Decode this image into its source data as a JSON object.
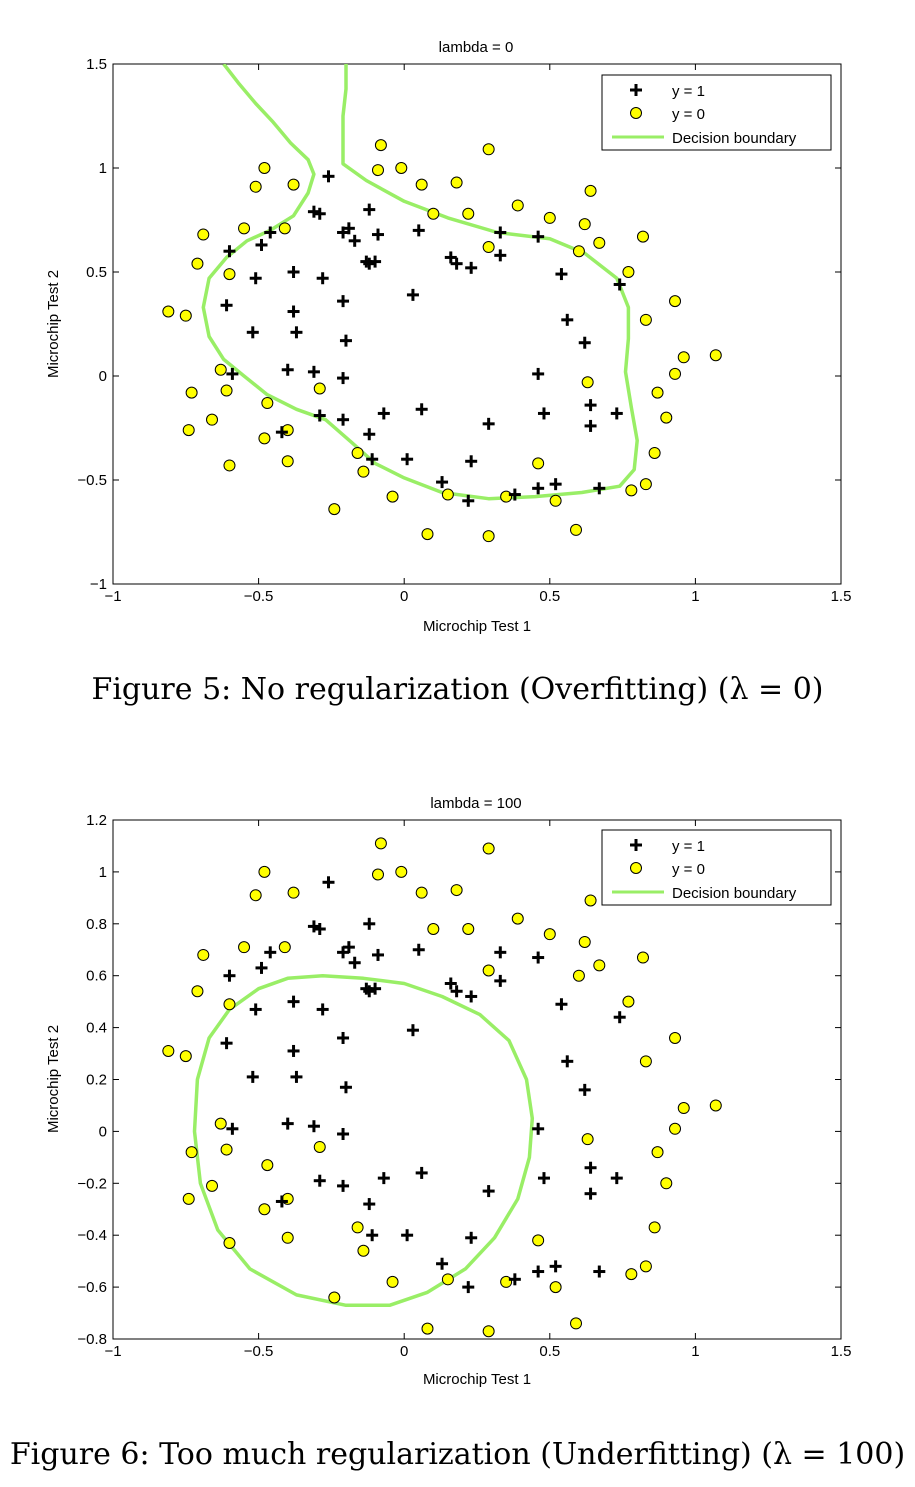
{
  "figures": [
    {
      "caption": "Figure 5: No regularization (Overfitting) (λ = 0)",
      "chart_data": {
        "type": "scatter",
        "title": "lambda = 0",
        "xlabel": "Microchip Test 1",
        "ylabel": "Microchip Test 2",
        "xlim": [
          -1,
          1.5
        ],
        "ylim": [
          -1,
          1.5
        ],
        "xticks": [
          "−1",
          "−0.5",
          "0",
          "0.5",
          "1",
          "1.5"
        ],
        "yticks": [
          "−1",
          "−0.5",
          "0",
          "0.5",
          "1",
          "1.5"
        ],
        "grid": false,
        "legend_position": "top-right",
        "legend": [
          "y = 1",
          "y = 0",
          "Decision boundary"
        ],
        "colors": {
          "positive": "#000000",
          "negative_fill": "#ffff00",
          "boundary": "#99ee66"
        },
        "series": [
          {
            "name": "y = 1",
            "marker": "plus",
            "points": [
              [
                0.05,
                0.7
              ],
              [
                -0.09,
                0.68
              ],
              [
                -0.21,
                0.69
              ],
              [
                -0.38,
                0.5
              ],
              [
                -0.51,
                0.47
              ],
              [
                -0.52,
                0.21
              ],
              [
                -0.4,
                0.03
              ],
              [
                -0.31,
                0.02
              ],
              [
                -0.21,
                -0.01
              ],
              [
                0.03,
                0.39
              ],
              [
                -0.12,
                0.54
              ],
              [
                -0.13,
                0.55
              ],
              [
                -0.17,
                0.65
              ],
              [
                -0.19,
                0.71
              ],
              [
                -0.1,
                0.55
              ],
              [
                -0.28,
                0.47
              ],
              [
                -0.38,
                0.31
              ],
              [
                -0.21,
                0.36
              ],
              [
                -0.29,
                0.78
              ],
              [
                -0.37,
                0.21
              ],
              [
                -0.12,
                0.8
              ],
              [
                -0.26,
                0.96
              ],
              [
                -0.49,
                0.63
              ],
              [
                -0.6,
                0.6
              ],
              [
                -0.61,
                0.34
              ],
              [
                -0.59,
                0.01
              ],
              [
                -0.2,
                0.17
              ],
              [
                0.18,
                0.54
              ],
              [
                0.16,
                0.57
              ],
              [
                0.23,
                0.52
              ],
              [
                0.33,
                0.58
              ],
              [
                0.46,
                0.67
              ],
              [
                0.33,
                0.69
              ],
              [
                0.54,
                0.49
              ],
              [
                0.56,
                0.27
              ],
              [
                0.62,
                0.16
              ],
              [
                0.46,
                0.01
              ],
              [
                0.48,
                -0.18
              ],
              [
                0.64,
                -0.14
              ],
              [
                0.64,
                -0.24
              ],
              [
                0.73,
                -0.18
              ],
              [
                0.67,
                -0.54
              ],
              [
                0.52,
                -0.52
              ],
              [
                0.46,
                -0.54
              ],
              [
                0.38,
                -0.57
              ],
              [
                0.22,
                -0.6
              ],
              [
                0.13,
                -0.51
              ],
              [
                0.23,
                -0.41
              ],
              [
                0.29,
                -0.23
              ],
              [
                0.06,
                -0.16
              ],
              [
                -0.07,
                -0.18
              ],
              [
                0.01,
                -0.4
              ],
              [
                -0.11,
                -0.4
              ],
              [
                -0.12,
                -0.28
              ],
              [
                -0.21,
                -0.21
              ],
              [
                -0.29,
                -0.19
              ],
              [
                -0.42,
                -0.27
              ],
              [
                -0.31,
                0.79
              ],
              [
                0.74,
                0.44
              ],
              [
                -0.46,
                0.69
              ]
            ]
          },
          {
            "name": "y = 0",
            "marker": "circle",
            "points": [
              [
                -0.81,
                0.31
              ],
              [
                -0.75,
                0.29
              ],
              [
                -0.71,
                0.54
              ],
              [
                -0.69,
                0.68
              ],
              [
                -0.55,
                0.71
              ],
              [
                -0.51,
                0.91
              ],
              [
                -0.48,
                1.0
              ],
              [
                -0.38,
                0.92
              ],
              [
                -0.41,
                0.71
              ],
              [
                -0.6,
                0.49
              ],
              [
                -0.73,
                -0.08
              ],
              [
                -0.74,
                -0.26
              ],
              [
                -0.66,
                -0.21
              ],
              [
                -0.6,
                -0.43
              ],
              [
                -0.61,
                -0.07
              ],
              [
                -0.48,
                -0.3
              ],
              [
                -0.47,
                -0.13
              ],
              [
                -0.4,
                -0.41
              ],
              [
                -0.4,
                -0.26
              ],
              [
                -0.29,
                -0.06
              ],
              [
                -0.24,
                -0.64
              ],
              [
                -0.14,
                -0.46
              ],
              [
                -0.16,
                -0.37
              ],
              [
                -0.04,
                -0.58
              ],
              [
                0.08,
                -0.76
              ],
              [
                0.15,
                -0.57
              ],
              [
                0.29,
                -0.77
              ],
              [
                0.35,
                -0.58
              ],
              [
                0.46,
                -0.42
              ],
              [
                0.52,
                -0.6
              ],
              [
                0.59,
                -0.74
              ],
              [
                0.78,
                -0.55
              ],
              [
                0.83,
                -0.52
              ],
              [
                0.86,
                -0.37
              ],
              [
                0.9,
                -0.2
              ],
              [
                0.87,
                -0.08
              ],
              [
                0.93,
                0.01
              ],
              [
                0.96,
                0.09
              ],
              [
                1.07,
                0.1
              ],
              [
                0.93,
                0.36
              ],
              [
                0.83,
                0.27
              ],
              [
                0.82,
                0.67
              ],
              [
                0.77,
                0.5
              ],
              [
                0.67,
                0.64
              ],
              [
                0.62,
                0.73
              ],
              [
                0.6,
                0.6
              ],
              [
                0.64,
                0.89
              ],
              [
                0.5,
                0.76
              ],
              [
                0.39,
                0.82
              ],
              [
                0.29,
                0.62
              ],
              [
                0.22,
                0.78
              ],
              [
                0.18,
                0.93
              ],
              [
                0.1,
                0.78
              ],
              [
                0.06,
                0.92
              ],
              [
                -0.01,
                1.0
              ],
              [
                -0.09,
                0.99
              ],
              [
                -0.08,
                1.11
              ],
              [
                0.29,
                1.09
              ],
              [
                0.63,
                -0.03
              ],
              [
                -0.63,
                0.03
              ]
            ]
          }
        ],
        "decision_boundary": [
          [
            -0.62,
            1.5
          ],
          [
            -0.57,
            1.41
          ],
          [
            -0.51,
            1.31
          ],
          [
            -0.45,
            1.22
          ],
          [
            -0.39,
            1.12
          ],
          [
            -0.33,
            1.04
          ],
          [
            -0.31,
            0.97
          ],
          [
            -0.33,
            0.88
          ],
          [
            -0.38,
            0.77
          ],
          [
            -0.46,
            0.7
          ],
          [
            -0.54,
            0.65
          ],
          [
            -0.61,
            0.57
          ],
          [
            -0.67,
            0.47
          ],
          [
            -0.69,
            0.33
          ],
          [
            -0.67,
            0.19
          ],
          [
            -0.62,
            0.08
          ],
          [
            -0.55,
            0.0
          ],
          [
            -0.47,
            -0.09
          ],
          [
            -0.37,
            -0.16
          ],
          [
            -0.27,
            -0.21
          ],
          [
            -0.18,
            -0.32
          ],
          [
            -0.1,
            -0.42
          ],
          [
            0.0,
            -0.49
          ],
          [
            0.13,
            -0.56
          ],
          [
            0.29,
            -0.59
          ],
          [
            0.45,
            -0.58
          ],
          [
            0.61,
            -0.56
          ],
          [
            0.74,
            -0.53
          ],
          [
            0.79,
            -0.45
          ],
          [
            0.8,
            -0.31
          ],
          [
            0.78,
            -0.15
          ],
          [
            0.76,
            0.02
          ],
          [
            0.77,
            0.18
          ],
          [
            0.77,
            0.33
          ],
          [
            0.73,
            0.47
          ],
          [
            0.62,
            0.59
          ],
          [
            0.5,
            0.66
          ],
          [
            0.32,
            0.69
          ],
          [
            0.15,
            0.76
          ],
          [
            0.0,
            0.84
          ],
          [
            -0.13,
            0.94
          ],
          [
            -0.21,
            1.02
          ],
          [
            -0.21,
            1.12
          ],
          [
            -0.21,
            1.25
          ],
          [
            -0.2,
            1.38
          ],
          [
            -0.2,
            1.5
          ]
        ]
      }
    },
    {
      "caption": "Figure 6: Too much regularization (Underfitting) (λ = 100)",
      "chart_data": {
        "type": "scatter",
        "title": "lambda = 100",
        "xlabel": "Microchip Test 1",
        "ylabel": "Microchip Test 2",
        "xlim": [
          -1,
          1.5
        ],
        "ylim": [
          -0.8,
          1.2
        ],
        "xticks": [
          "−1",
          "−0.5",
          "0",
          "0.5",
          "1",
          "1.5"
        ],
        "yticks": [
          "−0.8",
          "−0.6",
          "−0.4",
          "−0.2",
          "0",
          "0.2",
          "0.4",
          "0.6",
          "0.8",
          "1",
          "1.2"
        ],
        "grid": false,
        "legend_position": "top-right",
        "legend": [
          "y = 1",
          "y = 0",
          "Decision boundary"
        ],
        "colors": {
          "positive": "#000000",
          "negative_fill": "#ffff00",
          "boundary": "#99ee66"
        },
        "series": [
          {
            "name": "y = 1",
            "marker": "plus",
            "points": "same as figure 5"
          },
          {
            "name": "y = 0",
            "marker": "circle",
            "points": "same as figure 5"
          }
        ],
        "decision_boundary": [
          [
            -0.6,
            0.47
          ],
          [
            -0.5,
            0.55
          ],
          [
            -0.4,
            0.59
          ],
          [
            -0.28,
            0.6
          ],
          [
            -0.14,
            0.59
          ],
          [
            0.0,
            0.57
          ],
          [
            0.13,
            0.52
          ],
          [
            0.26,
            0.45
          ],
          [
            0.36,
            0.35
          ],
          [
            0.42,
            0.2
          ],
          [
            0.44,
            0.05
          ],
          [
            0.43,
            -0.1
          ],
          [
            0.39,
            -0.26
          ],
          [
            0.31,
            -0.41
          ],
          [
            0.21,
            -0.53
          ],
          [
            0.08,
            -0.62
          ],
          [
            -0.05,
            -0.67
          ],
          [
            -0.2,
            -0.67
          ],
          [
            -0.37,
            -0.63
          ],
          [
            -0.53,
            -0.53
          ],
          [
            -0.64,
            -0.38
          ],
          [
            -0.7,
            -0.2
          ],
          [
            -0.72,
            0.0
          ],
          [
            -0.71,
            0.2
          ],
          [
            -0.67,
            0.36
          ],
          [
            -0.6,
            0.47
          ]
        ]
      }
    }
  ]
}
